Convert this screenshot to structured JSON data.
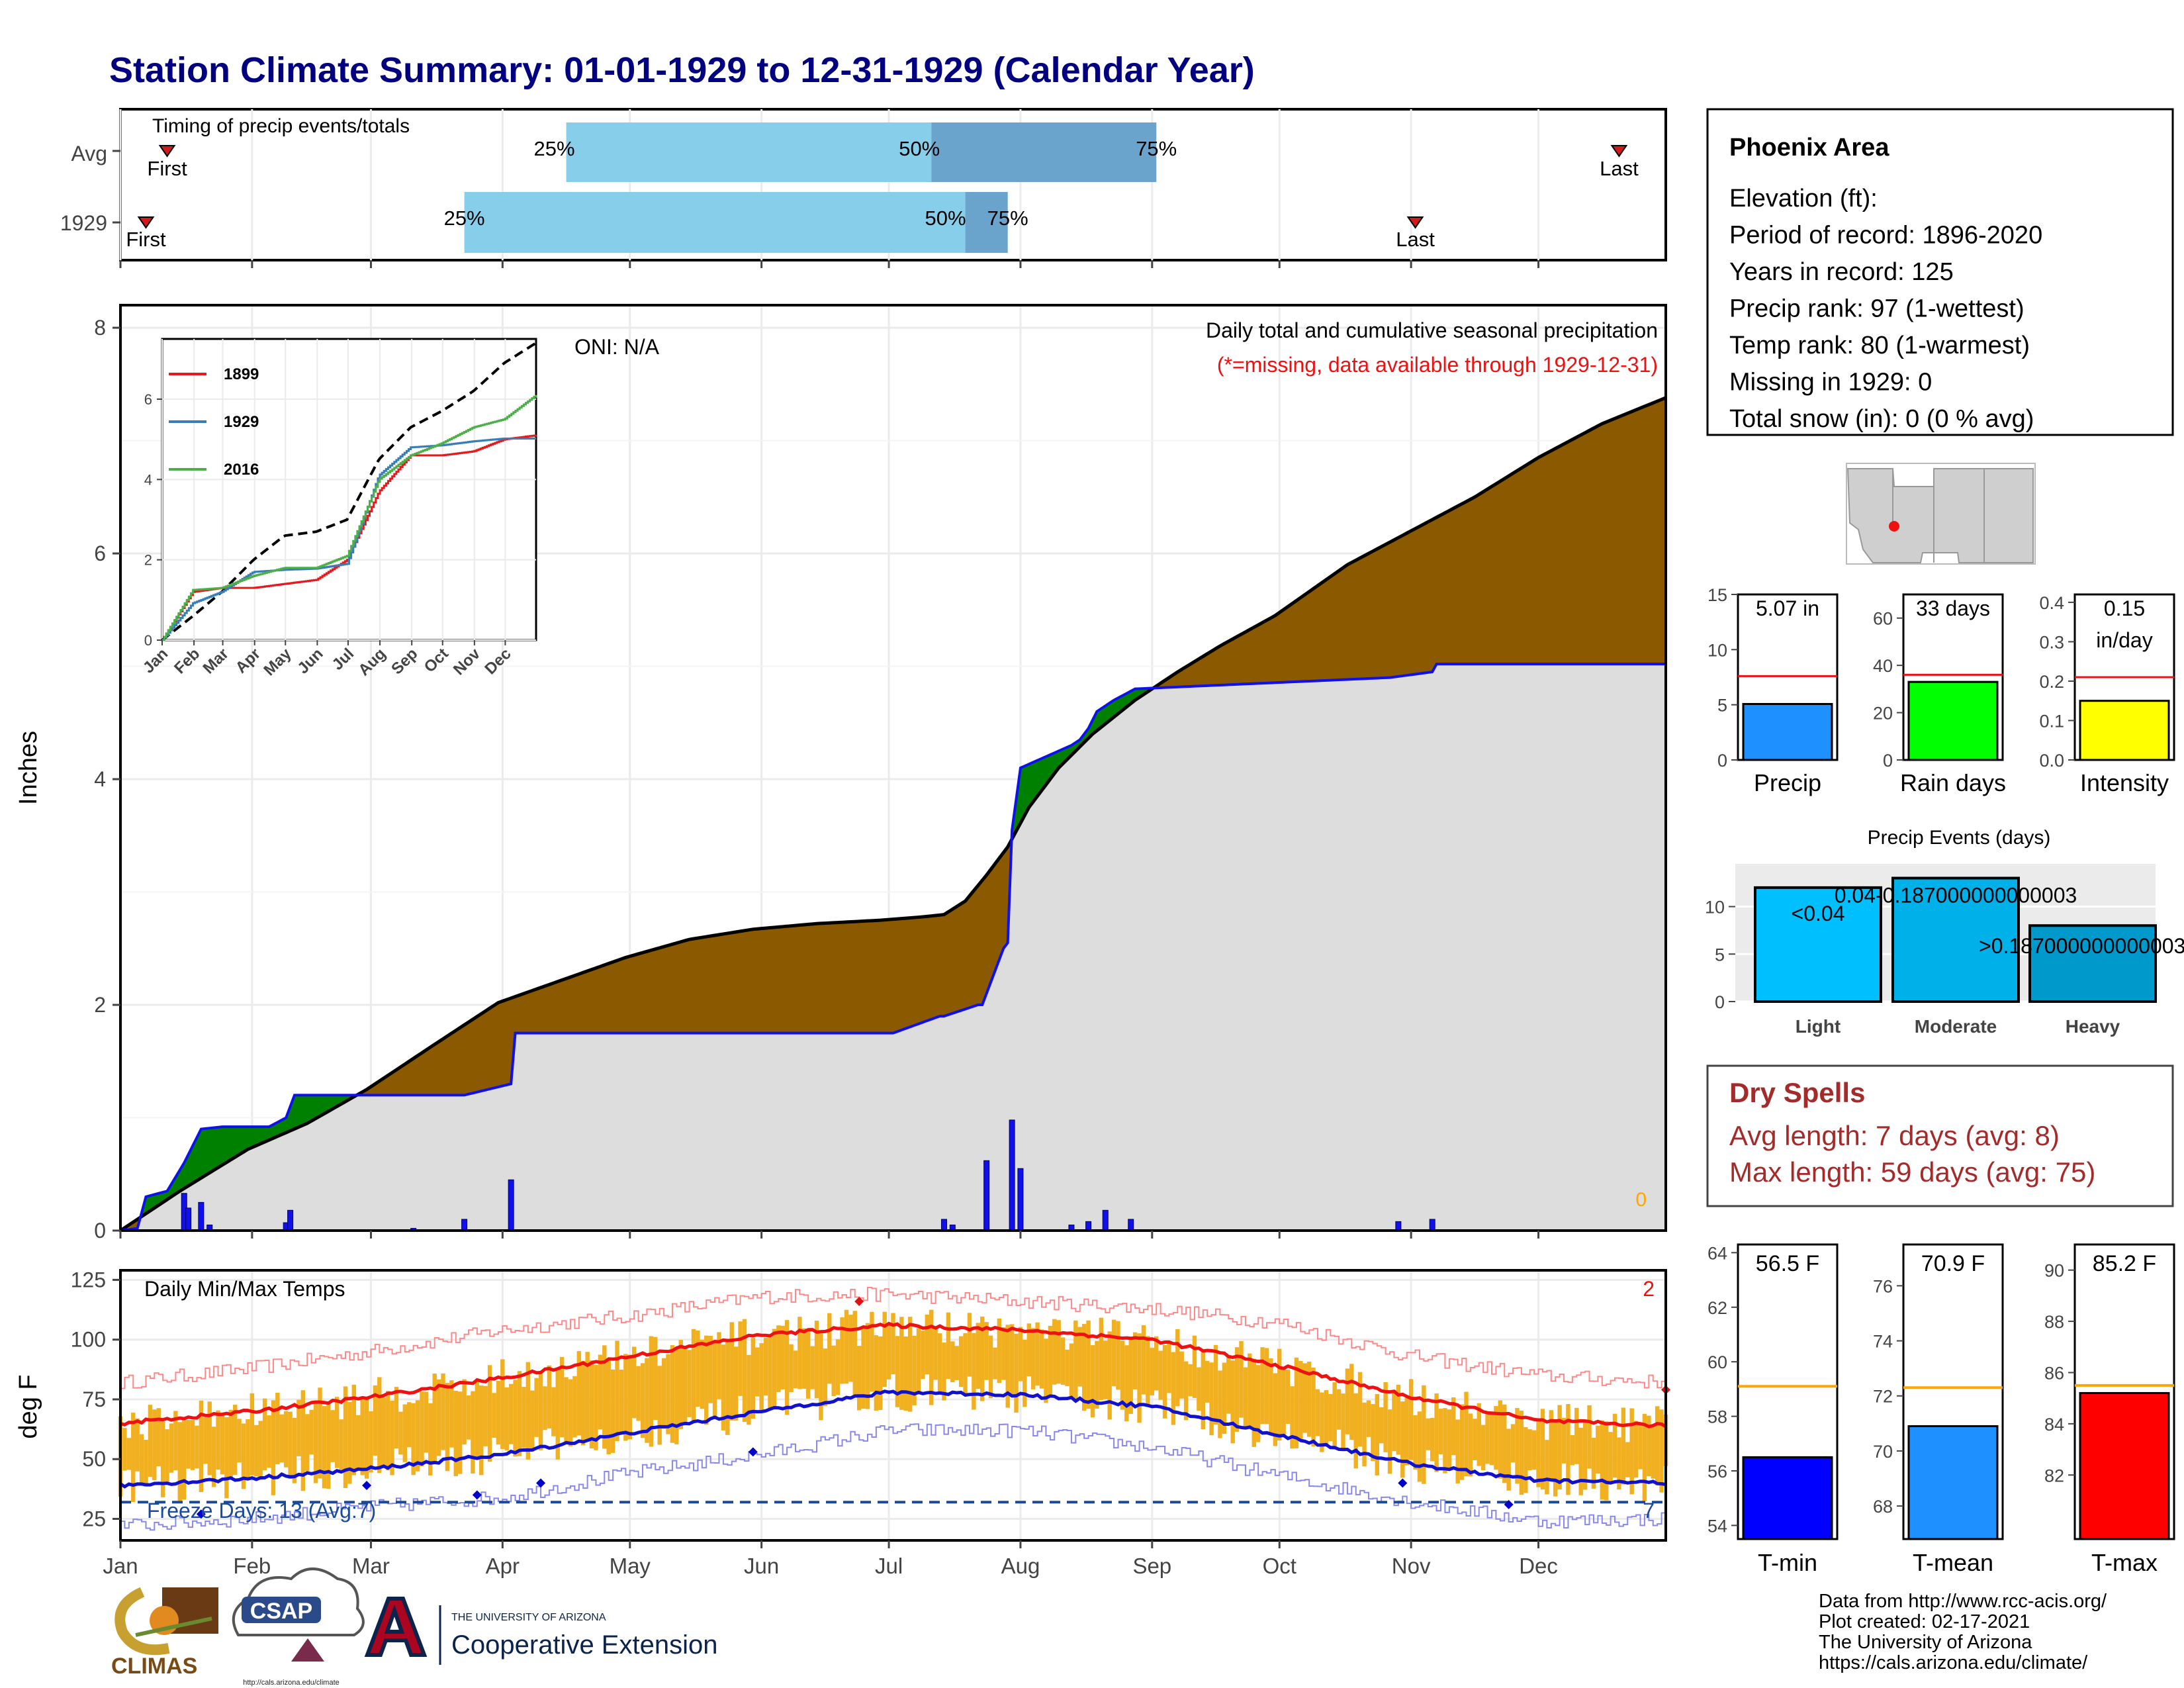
{
  "title": "Station Climate Summary: 01-01-1929 to 12-31-1929 (Calendar Year)",
  "timing": {
    "label": "Timing of precip events/totals",
    "rows": [
      {
        "name": "Avg",
        "first_doy": 12,
        "last_doy": 354,
        "p25": 106,
        "p50": 192,
        "p75": 245,
        "labels": {
          "first": "First",
          "last": "Last",
          "p25": "25%",
          "p50": "50%",
          "p75": "75%"
        }
      },
      {
        "name": "1929",
        "first_doy": 7,
        "last_doy": 306,
        "p25": 82,
        "p50": 200,
        "p75": 210,
        "labels": {
          "first": "First",
          "last": "Last",
          "p25": "25%",
          "p50": "50%",
          "p75": "75%"
        }
      }
    ],
    "colors": {
      "light": "#87ceeb",
      "dark": "#6aa4cc",
      "marker": "#d11a1a"
    }
  },
  "precip_panel": {
    "title": "Daily total and cumulative seasonal precipitation",
    "subtitle": "(*=missing, data available through 1929-12-31)",
    "oni": "ONI: N/A",
    "ylabel": "Inches",
    "yticks": [
      "0",
      "2",
      "4",
      "6",
      "8"
    ],
    "corner_count": "0",
    "colors": {
      "avg_fill": "#8b5a00",
      "year_fill": "#dddddd",
      "surplus": "#008000",
      "daily": "#1010ee",
      "line": "#1010ee"
    }
  },
  "inset": {
    "legend": [
      "1899",
      "1929",
      "2016"
    ],
    "legend_colors": [
      "#e41a1c",
      "#377eb8",
      "#4daf4a"
    ],
    "yticks": [
      "0",
      "2",
      "4",
      "6"
    ],
    "xticks": [
      "Jan",
      "Feb",
      "Mar",
      "Apr",
      "May",
      "Jun",
      "Jul",
      "Aug",
      "Sep",
      "Oct",
      "Nov",
      "Dec"
    ]
  },
  "temp_panel": {
    "title": "Daily Min/Max Temps",
    "ylabel": "deg F",
    "yticks": [
      "25",
      "50",
      "75",
      "100",
      "125"
    ],
    "freeze_label": "Freeze Days: 13 (Avg:7)",
    "corner_top": "2",
    "corner_bottom": "7",
    "months": [
      "Jan",
      "Feb",
      "Mar",
      "Apr",
      "May",
      "Jun",
      "Jul",
      "Aug",
      "Sep",
      "Oct",
      "Nov",
      "Dec"
    ],
    "colors": {
      "bar": "#f0b020",
      "max": "#ee1111",
      "min": "#1111cc"
    }
  },
  "info": {
    "station": "Phoenix Area",
    "lines": [
      "Elevation (ft):",
      "Period of record: 1896-2020",
      "Years in record: 125",
      "Precip rank: 97 (1-wettest)",
      "Temp rank: 80 (1-warmest)",
      "Missing in 1929: 0",
      "Total snow (in): 0 (0 % avg)"
    ]
  },
  "mini_bars": [
    {
      "label": "Precip",
      "value": 5.07,
      "value_text": "5.07 in",
      "avg": 7.6,
      "ymax": 15,
      "ticks": [
        "0",
        "5",
        "10",
        "15"
      ],
      "color": "#1e90ff"
    },
    {
      "label": "Rain days",
      "value": 33,
      "value_text": "33 days",
      "avg": 36,
      "ymax": 70,
      "ticks": [
        "0",
        "20",
        "40",
        "60"
      ],
      "color": "#00ff00"
    },
    {
      "label": "Intensity",
      "value": 0.15,
      "value_text": "0.15",
      "value_text2": "in/day",
      "avg": 0.21,
      "ymax": 0.42,
      "ticks": [
        "0.0",
        "0.1",
        "0.2",
        "0.3",
        "0.4"
      ],
      "color": "#ffff00"
    }
  ],
  "events": {
    "title": "Precip Events (days)",
    "categories": [
      "Light",
      "Moderate",
      "Heavy"
    ],
    "values": [
      12,
      13,
      8
    ],
    "labels": [
      "<0.04",
      "0.04-0.187000000000003",
      ">0.187000000000003"
    ],
    "ticks": [
      "0",
      "5",
      "10"
    ],
    "colors": [
      "#00bfff",
      "#00b0e8",
      "#0099cc"
    ]
  },
  "dry_spells": {
    "title": "Dry Spells",
    "lines": [
      "Avg length: 7 days (avg: 8)",
      "Max length: 59 days (avg: 75)"
    ]
  },
  "temp_bars": [
    {
      "label": "T-min",
      "value": 56.5,
      "value_text": "56.5 F",
      "avg": 59.1,
      "ymin": 53.5,
      "ymax": 64.3,
      "ticks": [
        "54",
        "56",
        "58",
        "60",
        "62",
        "64"
      ],
      "color": "#0000ff"
    },
    {
      "label": "T-mean",
      "value": 70.9,
      "value_text": "70.9 F",
      "avg": 72.3,
      "ymin": 66.8,
      "ymax": 77.5,
      "ticks": [
        "68",
        "70",
        "72",
        "74",
        "76"
      ],
      "color": "#1e90ff"
    },
    {
      "label": "T-max",
      "value": 85.2,
      "value_text": "85.2 F",
      "avg": 85.5,
      "ymin": 79.5,
      "ymax": 91.0,
      "ticks": [
        "82",
        "84",
        "86",
        "88",
        "90"
      ],
      "color": "#ff0000"
    }
  ],
  "footer": {
    "lines": [
      "Data from http://www.rcc-acis.org/",
      "Plot created: 02-17-2021",
      "The University of Arizona",
      "https://cals.arizona.edu/climate/"
    ],
    "logo1": "CLIMAS",
    "logo2": "CSAP",
    "logo2_sub": "http://cals.arizona.edu/climate",
    "logo3_small": "THE UNIVERSITY OF ARIZONA",
    "logo3_big": "Cooperative Extension"
  },
  "chart_data": [
    {
      "type": "area",
      "title": "Daily total and cumulative seasonal precipitation",
      "ylabel": "Inches",
      "ylim": [
        0,
        8.2
      ],
      "xlim": [
        1,
        365
      ],
      "series": [
        {
          "name": "",
          "x": [
            1,
            15,
            31,
            45,
            59,
            75,
            90,
            105,
            120,
            135,
            150,
            165,
            180,
            190,
            195,
            200,
            205,
            210,
            215,
            222,
            230,
            240,
            250,
            260,
            273,
            290,
            305,
            320,
            335,
            350,
            365
          ],
          "values": [
            0,
            0.35,
            0.72,
            0.95,
            1.25,
            1.65,
            2.02,
            2.22,
            2.42,
            2.58,
            2.67,
            2.72,
            2.75,
            2.78,
            2.8,
            2.92,
            3.15,
            3.4,
            3.75,
            4.1,
            4.4,
            4.7,
            4.95,
            5.18,
            5.45,
            5.9,
            6.2,
            6.5,
            6.85,
            7.15,
            7.38
          ]
        },
        {
          "name": "1929",
          "x": [
            1,
            5,
            7,
            12,
            16,
            20,
            25,
            30,
            36,
            40,
            42,
            82,
            93,
            93.5,
            183,
            194,
            195,
            203,
            204,
            209,
            210,
            211,
            213,
            216,
            225,
            227,
            229,
            231,
            235,
            240,
            270,
            300,
            310,
            311,
            365
          ],
          "values": [
            0,
            0.02,
            0.3,
            0.35,
            0.6,
            0.9,
            0.92,
            0.92,
            0.92,
            1.0,
            1.2,
            1.2,
            1.3,
            1.75,
            1.75,
            1.9,
            1.9,
            2.0,
            2.0,
            2.5,
            2.55,
            3.55,
            4.1,
            4.15,
            4.3,
            4.35,
            4.45,
            4.6,
            4.7,
            4.8,
            4.85,
            4.9,
            4.95,
            5.02,
            5.02
          ]
        }
      ],
      "daily": [
        {
          "x": 16,
          "v": 0.33
        },
        {
          "x": 17,
          "v": 0.2
        },
        {
          "x": 20,
          "v": 0.25
        },
        {
          "x": 22,
          "v": 0.05
        },
        {
          "x": 40,
          "v": 0.07
        },
        {
          "x": 41,
          "v": 0.18
        },
        {
          "x": 70,
          "v": 0.02
        },
        {
          "x": 82,
          "v": 0.1
        },
        {
          "x": 93,
          "v": 0.45
        },
        {
          "x": 195,
          "v": 0.1
        },
        {
          "x": 197,
          "v": 0.05
        },
        {
          "x": 205,
          "v": 0.62
        },
        {
          "x": 211,
          "v": 0.98
        },
        {
          "x": 213,
          "v": 0.55
        },
        {
          "x": 225,
          "v": 0.05
        },
        {
          "x": 229,
          "v": 0.08
        },
        {
          "x": 233,
          "v": 0.18
        },
        {
          "x": 239,
          "v": 0.1
        },
        {
          "x": 302,
          "v": 0.08
        },
        {
          "x": 310,
          "v": 0.1
        }
      ]
    },
    {
      "type": "line",
      "title": "",
      "xlabel": "",
      "ylabel": "",
      "ylim": [
        0,
        7.5
      ],
      "x": [
        1,
        31,
        59,
        90,
        120,
        151,
        181,
        212,
        243,
        273,
        304,
        334,
        365
      ],
      "series": [
        {
          "name": "",
          "values": [
            0,
            0.6,
            1.2,
            2.0,
            2.6,
            2.7,
            3.0,
            4.5,
            5.3,
            5.7,
            6.2,
            6.9,
            7.4
          ]
        },
        {
          "name": "1899",
          "values": [
            0,
            1.2,
            1.3,
            1.3,
            1.4,
            1.5,
            2.0,
            3.7,
            4.6,
            4.6,
            4.7,
            5.0,
            5.1
          ]
        },
        {
          "name": "1929",
          "values": [
            0,
            0.92,
            1.2,
            1.7,
            1.75,
            1.78,
            1.9,
            4.1,
            4.8,
            4.85,
            4.95,
            5.02,
            5.02
          ]
        },
        {
          "name": "2016",
          "values": [
            0,
            1.25,
            1.3,
            1.6,
            1.8,
            1.8,
            2.1,
            4.0,
            4.6,
            4.9,
            5.3,
            5.5,
            6.1
          ]
        }
      ]
    },
    {
      "type": "bar",
      "title": "Daily Min/Max Temps",
      "ylabel": "deg F",
      "ylim": [
        16,
        129
      ],
      "xlim": [
        1,
        365
      ],
      "normals": {
        "x": [
          1,
          32,
          60,
          91,
          121,
          152,
          182,
          213,
          244,
          274,
          305,
          335,
          365
        ],
        "max": [
          65,
          70,
          76,
          84,
          93,
          102,
          106,
          104,
          100,
          89,
          76,
          66,
          64
        ],
        "min": [
          39,
          42,
          46,
          52,
          61,
          70,
          78,
          77,
          72,
          60,
          48,
          41,
          40
        ],
        "record_max": [
          82,
          88,
          95,
          104,
          110,
          118,
          119,
          116,
          113,
          107,
          93,
          85,
          82
        ],
        "record_min": [
          22,
          25,
          30,
          34,
          44,
          52,
          62,
          62,
          55,
          43,
          32,
          24,
          25
        ]
      },
      "record_points": [
        {
          "x": 20,
          "v": 27
        },
        {
          "x": 59,
          "v": 39
        },
        {
          "x": 85,
          "v": 35
        },
        {
          "x": 100,
          "v": 40
        },
        {
          "x": 150,
          "v": 53
        },
        {
          "x": 175,
          "v": 116
        },
        {
          "x": 303,
          "v": 40
        },
        {
          "x": 328,
          "v": 31
        },
        {
          "x": 365,
          "v": 79
        }
      ],
      "freeze_line": 32
    }
  ]
}
